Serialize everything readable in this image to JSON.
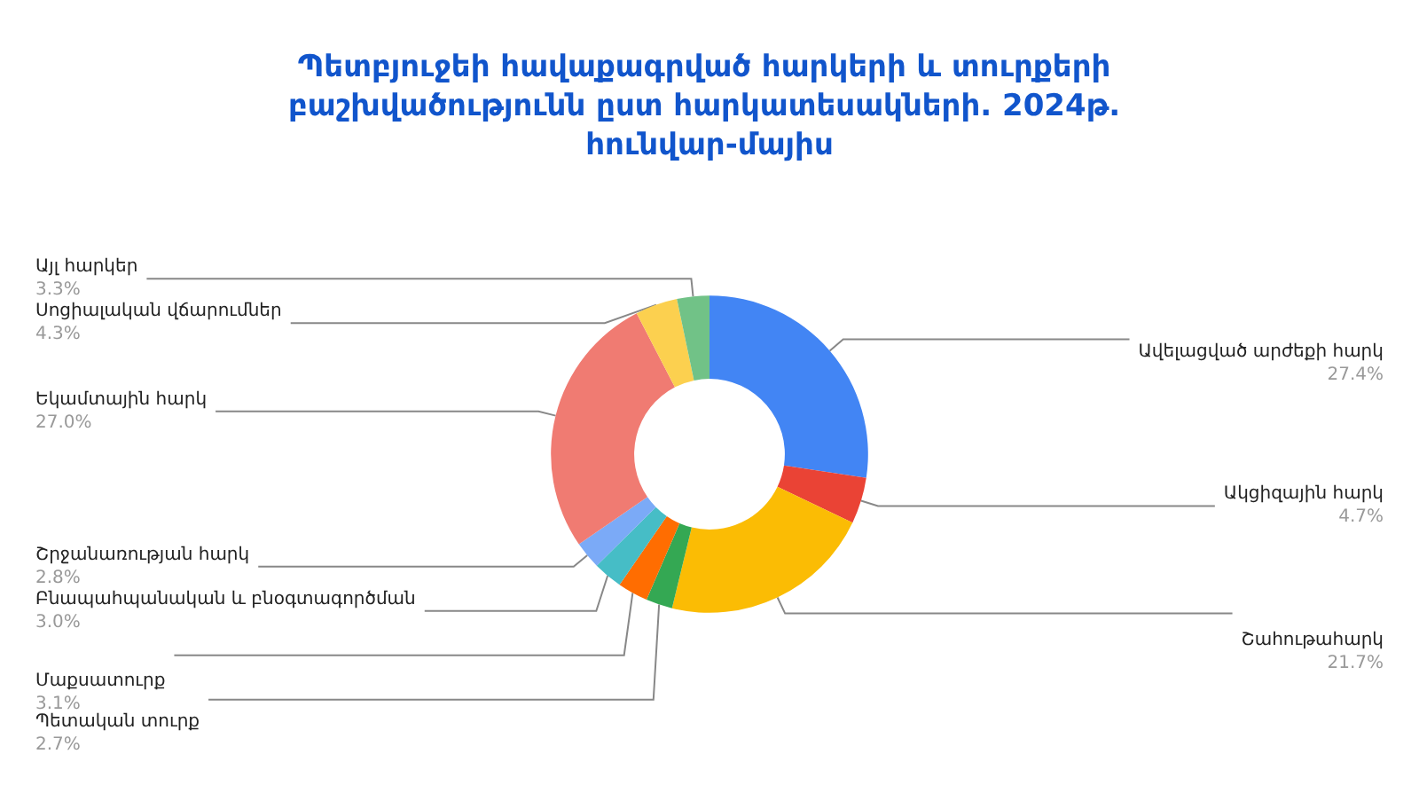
{
  "chart_data": {
    "type": "donut",
    "title": "Պետբյուջեի հավաքագրված հարկերի և տուրքերի բաշխվածությունն ըստ հարկատեսակների. 2024թ. հունվար-մայիս",
    "categories": [
      "Ավելացված արժեքի հարկ",
      "Ակցիզային հարկ",
      "Շահութահարկ",
      "Պետական տուրք",
      "Մաքսատուրք",
      "Բնապահպանական և բնօգտագործման",
      "Շրջանառության հարկ",
      "Եկամտային հարկ",
      "Սոցիալական վճարումներ",
      "Այլ հարկեր"
    ],
    "values": [
      27.4,
      4.7,
      21.7,
      2.7,
      3.1,
      3.0,
      2.8,
      27.0,
      4.3,
      3.3
    ],
    "value_labels": [
      "27.4%",
      "4.7%",
      "21.7%",
      "2.7%",
      "3.1%",
      "3.0%",
      "2.8%",
      "27.0%",
      "4.3%",
      "3.3%"
    ],
    "colors": [
      "#4285f4",
      "#ea4335",
      "#fbbc04",
      "#34a853",
      "#ff6d01",
      "#46bdc6",
      "#7baaf7",
      "#f07b72",
      "#fcd04f",
      "#71c287"
    ],
    "legend": false
  }
}
